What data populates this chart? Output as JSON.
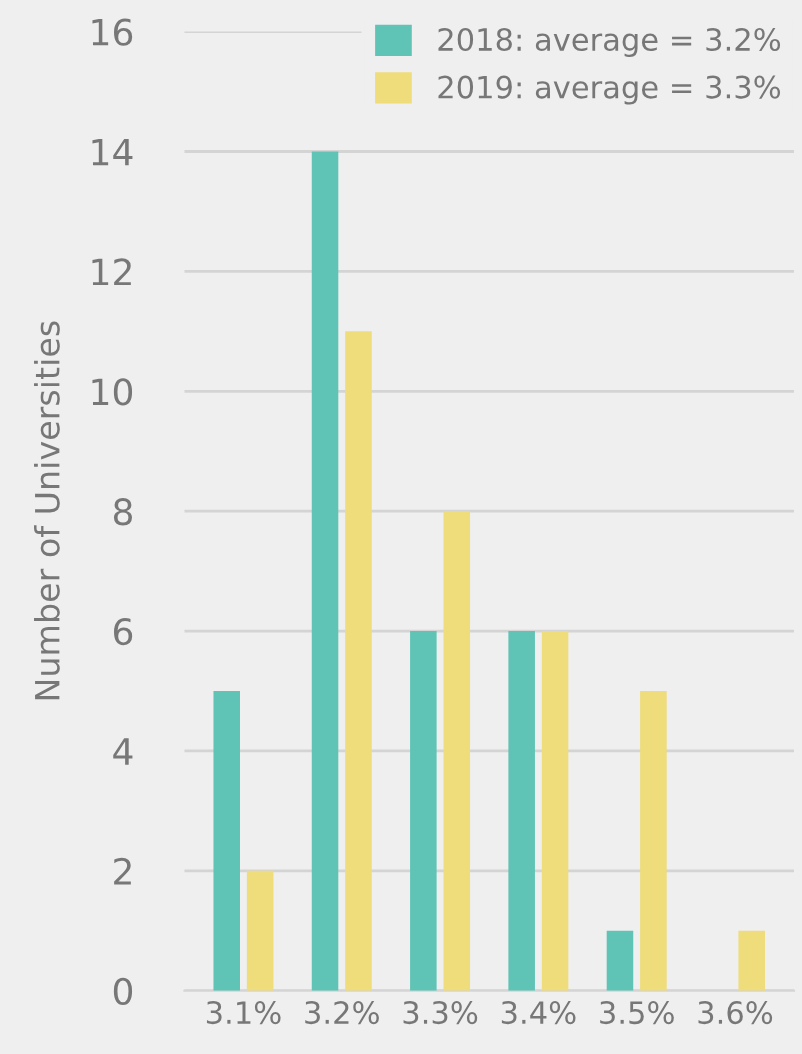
{
  "chart_data": {
    "type": "bar",
    "ylabel": "Number of Universities",
    "categories": [
      "3.1%",
      "3.2%",
      "3.3%",
      "3.4%",
      "3.5%",
      "3.6%"
    ],
    "series": [
      {
        "name": "2018: average = 3.2%",
        "color": "#5fc4b6",
        "values": [
          5,
          14,
          6,
          6,
          1,
          0
        ]
      },
      {
        "name": "2019: average = 3.3%",
        "color": "#efdc7a",
        "values": [
          2,
          11,
          8,
          6,
          5,
          1
        ]
      }
    ],
    "ylim": [
      0,
      16
    ],
    "yticks": [
      0,
      2,
      4,
      6,
      8,
      10,
      12,
      14,
      16
    ],
    "grid": "y",
    "legend": "top right"
  }
}
